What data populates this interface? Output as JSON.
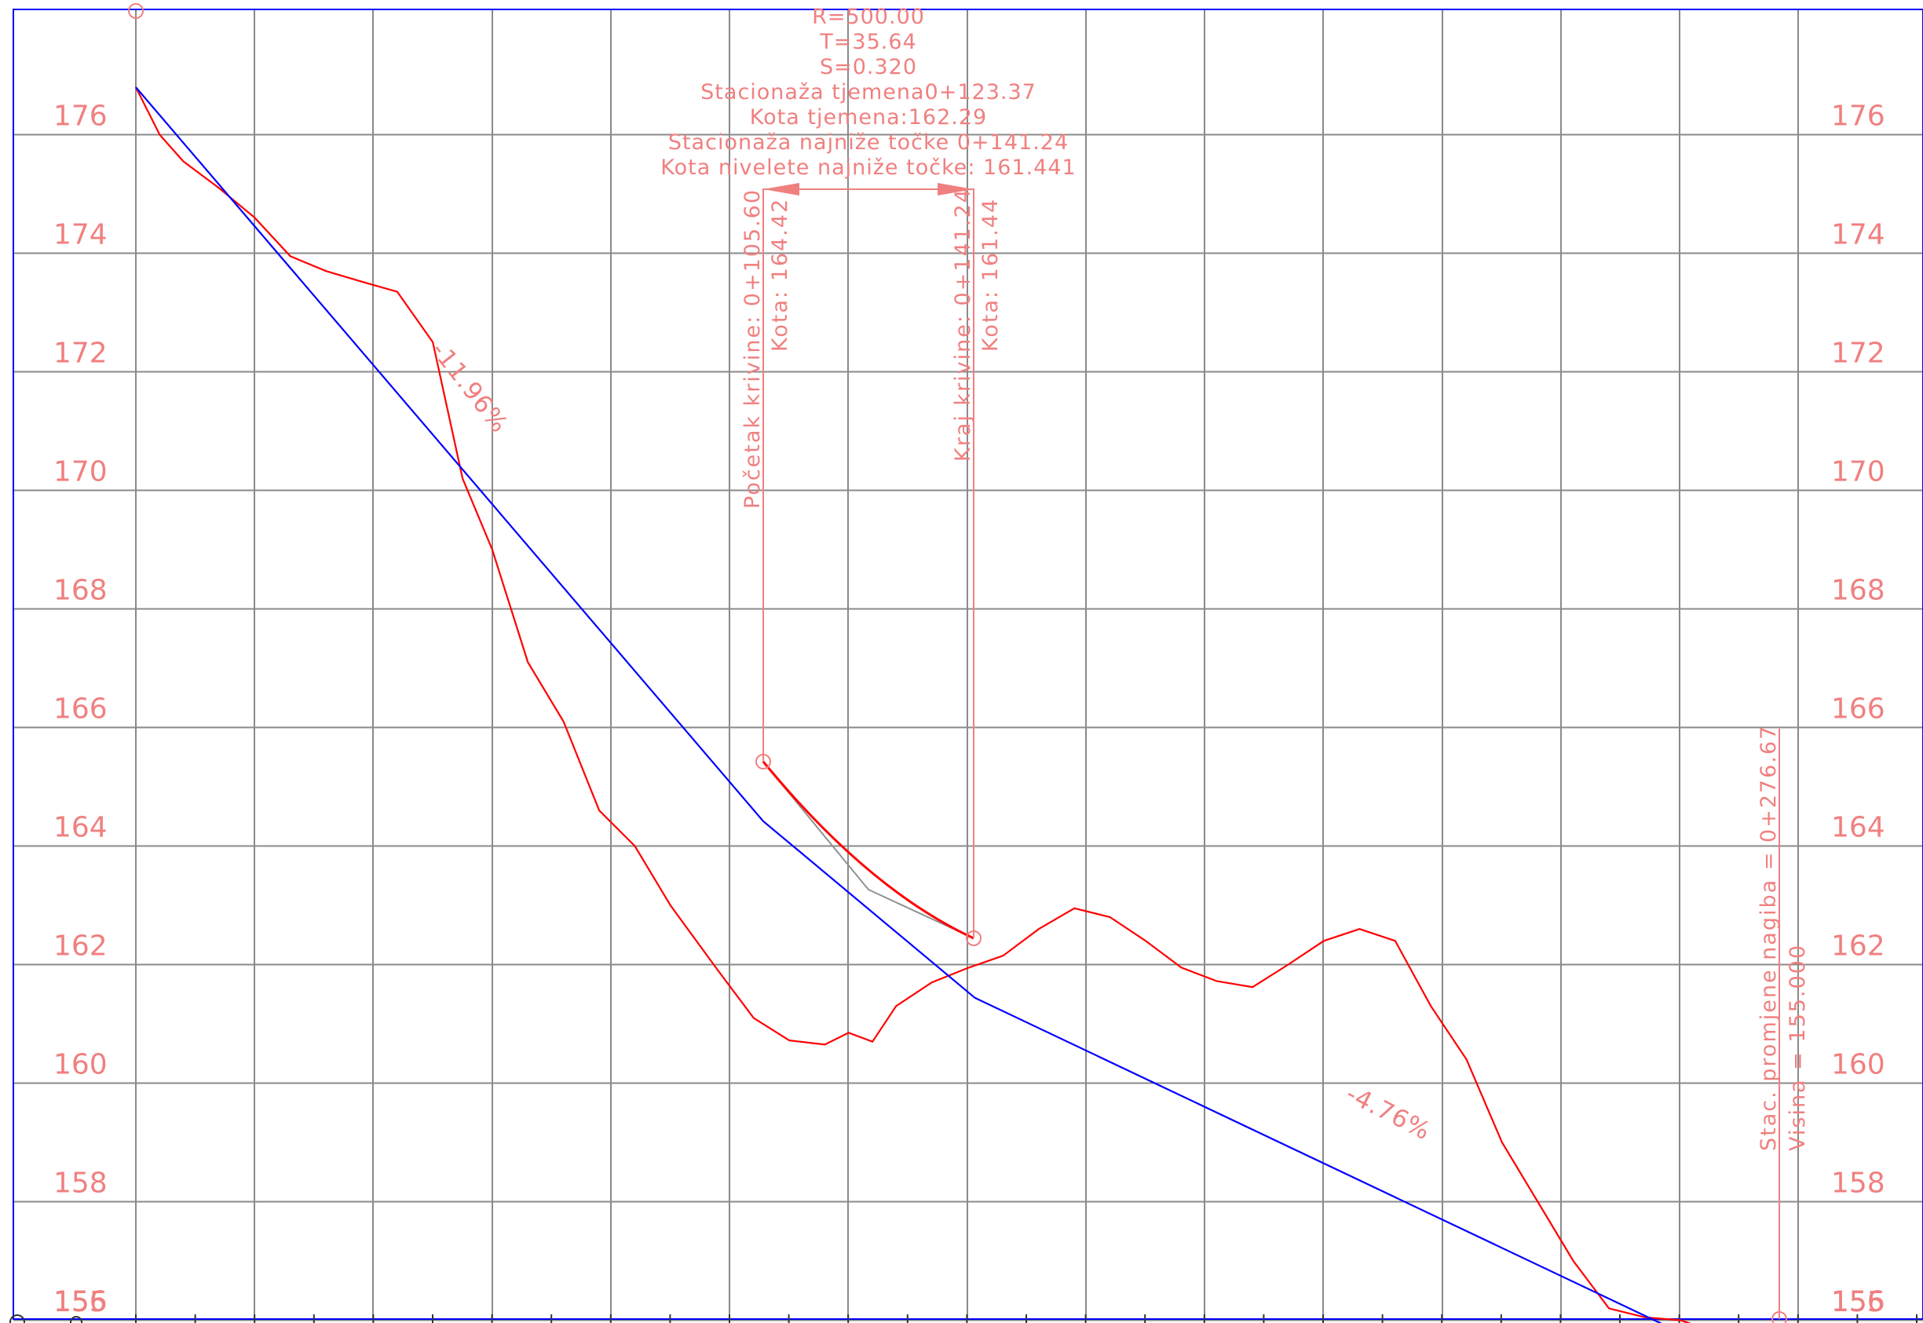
{
  "colors": {
    "grid": "#8a8a8a",
    "frame": "#0000ff",
    "grade_line": "#0000ff",
    "terrain": "#ff0000",
    "annotation": "#f08080",
    "chord": "#909090"
  },
  "elevation_ticks": [
    "176",
    "174",
    "172",
    "170",
    "168",
    "166",
    "164",
    "162",
    "160",
    "158",
    "156",
    "155"
  ],
  "curve_parameters": [
    "R=500.00",
    "T=35.64",
    "S=0.320",
    "Stacionaža tjemena0+123.37",
    "Kota tjemena:162.29",
    "Stacionaža najniže točke 0+141.24",
    "Kota nivelete najniže točke: 161.441"
  ],
  "curve_start": {
    "station": "Početak krivine: 0+105.60",
    "elevation": "Kota: 164.42"
  },
  "curve_end": {
    "station": "Kraj krivine: 0+141.24",
    "elevation": "Kota: 161.44"
  },
  "grade_break": {
    "station": "Stac. promjene nagiba = 0+276.67",
    "height": "Visina = 155.000"
  },
  "slopes": {
    "first": "-11.96%",
    "second": "-4.76%"
  },
  "chart_data": {
    "type": "line",
    "title": "",
    "xlabel": "",
    "ylabel": "",
    "ylim": [
      154.6,
      177.0
    ],
    "y_ticks": [
      176,
      174,
      172,
      170,
      168,
      166,
      164,
      162,
      160,
      158,
      156,
      155
    ],
    "series": [
      {
        "points": [
          [
            0.0,
            176.8
          ],
          [
            4,
            176.0
          ],
          [
            8,
            175.55
          ],
          [
            14,
            175.1
          ],
          [
            20,
            174.6
          ],
          [
            26,
            173.95
          ],
          [
            32,
            173.7
          ],
          [
            38,
            173.52
          ],
          [
            44,
            173.35
          ],
          [
            50,
            172.5
          ],
          [
            55,
            170.2
          ],
          [
            60,
            169.0
          ],
          [
            66,
            167.1
          ],
          [
            72,
            166.1
          ],
          [
            78,
            164.6
          ],
          [
            84,
            164.0
          ],
          [
            90,
            163.0
          ],
          [
            98,
            161.9
          ],
          [
            104,
            161.1
          ],
          [
            110,
            160.72
          ],
          [
            116,
            160.65
          ],
          [
            120,
            160.85
          ],
          [
            124,
            160.7
          ],
          [
            128,
            161.3
          ],
          [
            134,
            161.7
          ],
          [
            140,
            161.94
          ],
          [
            146,
            162.15
          ],
          [
            152,
            162.6
          ],
          [
            158,
            162.95
          ],
          [
            164,
            162.8
          ],
          [
            170,
            162.4
          ],
          [
            176,
            161.95
          ],
          [
            182,
            161.72
          ],
          [
            188,
            161.62
          ],
          [
            194,
            162.0
          ],
          [
            200,
            162.4
          ],
          [
            206,
            162.6
          ],
          [
            212,
            162.4
          ],
          [
            218,
            161.3
          ],
          [
            224,
            160.4
          ],
          [
            230,
            159.0
          ],
          [
            236,
            158.0
          ],
          [
            242,
            157.0
          ],
          [
            248,
            156.2
          ],
          [
            254,
            156.05
          ],
          [
            260,
            156.0
          ],
          [
            266,
            155.8
          ],
          [
            272,
            155.1
          ],
          [
            276.67,
            155.0
          ]
        ]
      },
      {
        "points": [
          [
            0.0,
            176.8
          ],
          [
            105.6,
            164.42
          ],
          [
            141.24,
            161.44
          ],
          [
            276.67,
            155.0
          ]
        ]
      }
    ]
  }
}
